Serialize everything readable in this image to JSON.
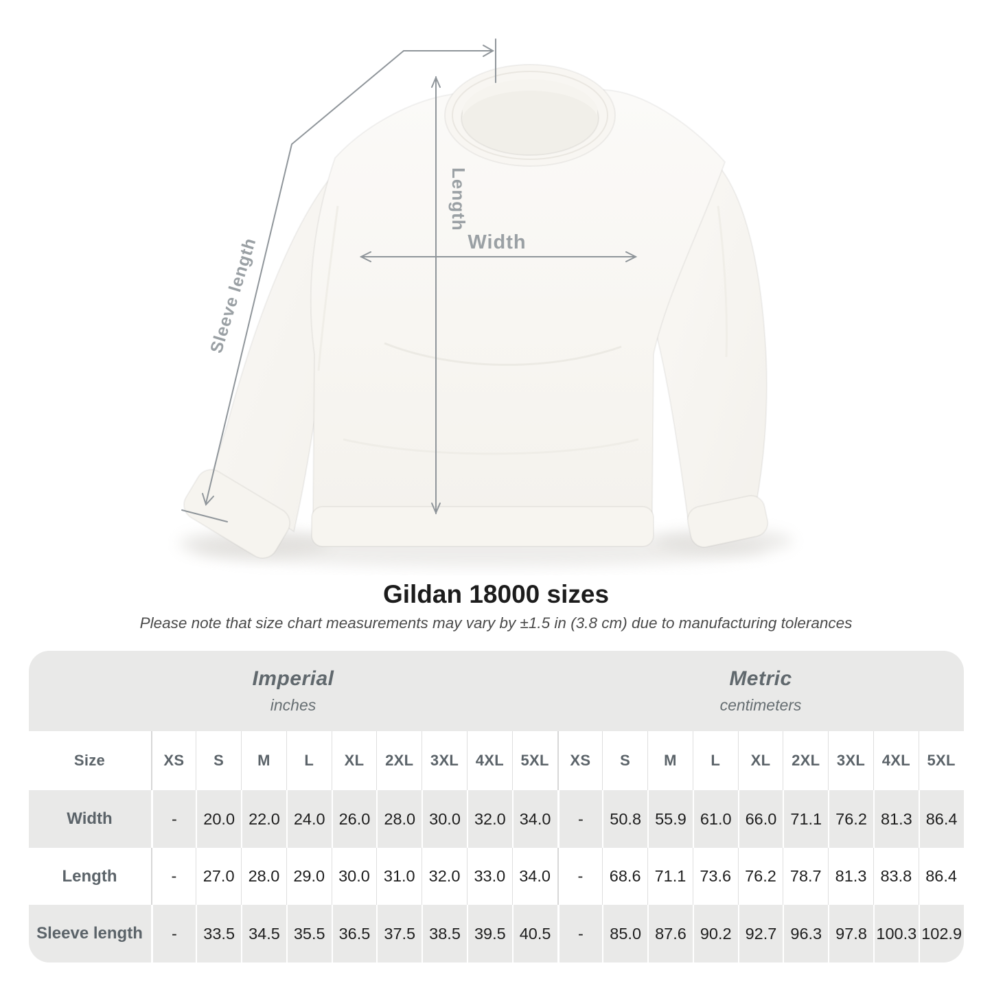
{
  "diagram": {
    "length_label": "Length",
    "width_label": "Width",
    "sleeve_label": "Sleeve length"
  },
  "title": "Gildan 18000 sizes",
  "subtitle": "Please note that size chart measurements may vary by ±1.5 in (3.8 cm) due to manufacturing tolerances",
  "table": {
    "imperial": {
      "name": "Imperial",
      "unit": "inches"
    },
    "metric": {
      "name": "Metric",
      "unit": "centimeters"
    },
    "size_header": "Size",
    "sizes": [
      "XS",
      "S",
      "M",
      "L",
      "XL",
      "2XL",
      "3XL",
      "4XL",
      "5XL"
    ],
    "rows": [
      {
        "label": "Width",
        "imperial": [
          "-",
          "20.0",
          "22.0",
          "24.0",
          "26.0",
          "28.0",
          "30.0",
          "32.0",
          "34.0"
        ],
        "metric": [
          "-",
          "50.8",
          "55.9",
          "61.0",
          "66.0",
          "71.1",
          "76.2",
          "81.3",
          "86.4"
        ]
      },
      {
        "label": "Length",
        "imperial": [
          "-",
          "27.0",
          "28.0",
          "29.0",
          "30.0",
          "31.0",
          "32.0",
          "33.0",
          "34.0"
        ],
        "metric": [
          "-",
          "68.6",
          "71.1",
          "73.6",
          "76.2",
          "78.7",
          "81.3",
          "83.8",
          "86.4"
        ]
      },
      {
        "label": "Sleeve length",
        "imperial": [
          "-",
          "33.5",
          "34.5",
          "35.5",
          "36.5",
          "37.5",
          "38.5",
          "39.5",
          "40.5"
        ],
        "metric": [
          "-",
          "85.0",
          "87.6",
          "90.2",
          "92.7",
          "96.3",
          "97.8",
          "100.3",
          "102.9"
        ]
      }
    ]
  },
  "colors": {
    "table_band": "#e9e9e8",
    "header_text": "#5b6369",
    "data_text": "#1d1d1d",
    "annotation_line": "#8f959a",
    "annotation_text": "#9aa0a4"
  }
}
